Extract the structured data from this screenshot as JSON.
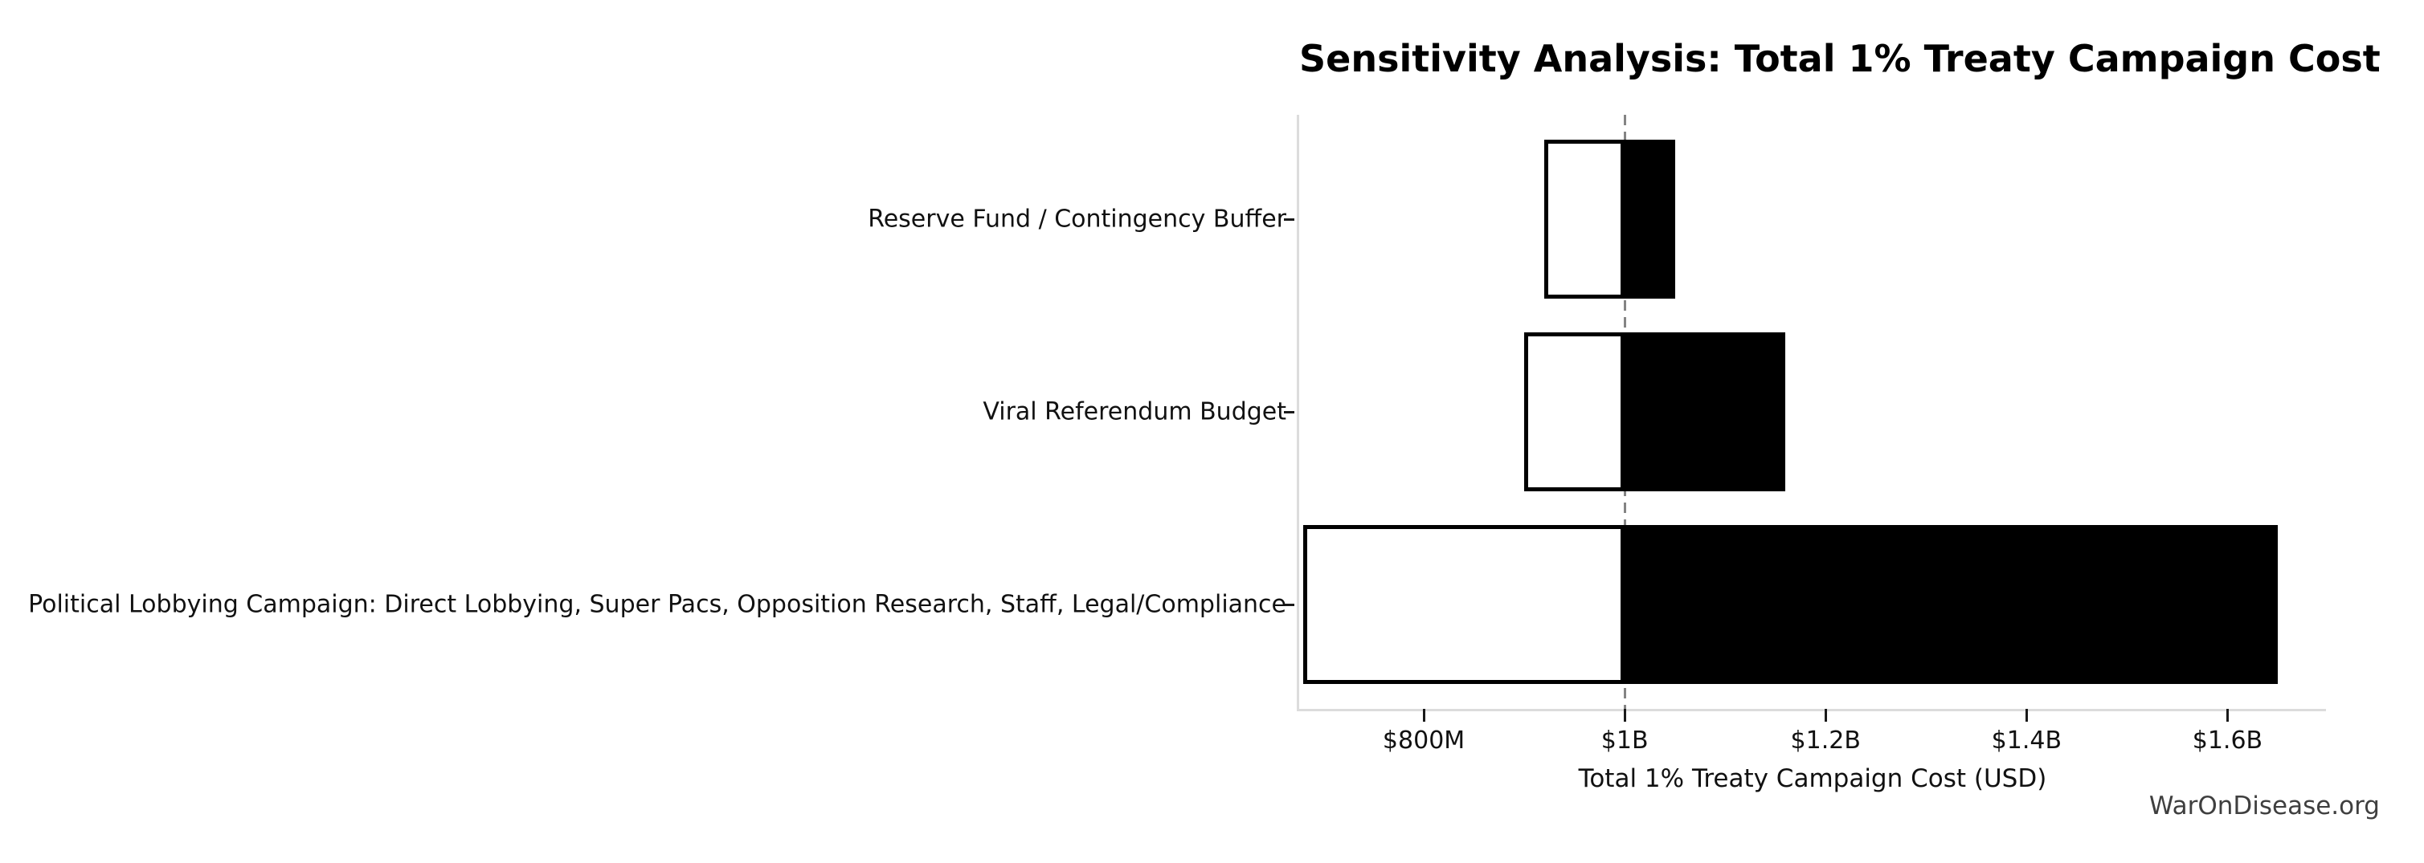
{
  "title": "Sensitivity Analysis: Total 1% Treaty Campaign Cost",
  "xlabel": "Total 1% Treaty Campaign Cost (USD)",
  "watermark": "WarOnDisease.org",
  "chart_data": {
    "type": "bar",
    "subtype": "tornado-sensitivity",
    "orientation": "horizontal",
    "base_value_million_usd": 1000,
    "baseline_style": "dashed-gray-vertical",
    "xlim_million_usd": [
      676,
      1698
    ],
    "xlabel": "Total 1% Treaty Campaign Cost (USD)",
    "title": "Sensitivity Analysis: Total 1% Treaty Campaign Cost",
    "grid": false,
    "x_ticks": [
      {
        "value": 800,
        "label": "$800M"
      },
      {
        "value": 1000,
        "label": "$1B"
      },
      {
        "value": 1200,
        "label": "$1.2B"
      },
      {
        "value": 1400,
        "label": "$1.4B"
      },
      {
        "value": 1600,
        "label": "$1.6B"
      }
    ],
    "bars": [
      {
        "label": "Reserve Fund / Contingency Buffer",
        "low_million_usd": 920,
        "high_million_usd": 1050
      },
      {
        "label": "Viral Referendum Budget",
        "low_million_usd": 900,
        "high_million_usd": 1160
      },
      {
        "label": "Political Lobbying Campaign: Direct Lobbying, Super Pacs, Opposition Research, Staff, Legal/Compliance",
        "low_million_usd": 680,
        "high_million_usd": 1650
      }
    ],
    "colors": {
      "low_fill": "#ffffff",
      "low_edge": "#000000",
      "high_fill": "#000000",
      "baseline_line": "#848484",
      "spine": "#dcdcdc",
      "tick": "#1a1a1a",
      "text": "#111111",
      "watermark": "#3f3f3f"
    }
  }
}
